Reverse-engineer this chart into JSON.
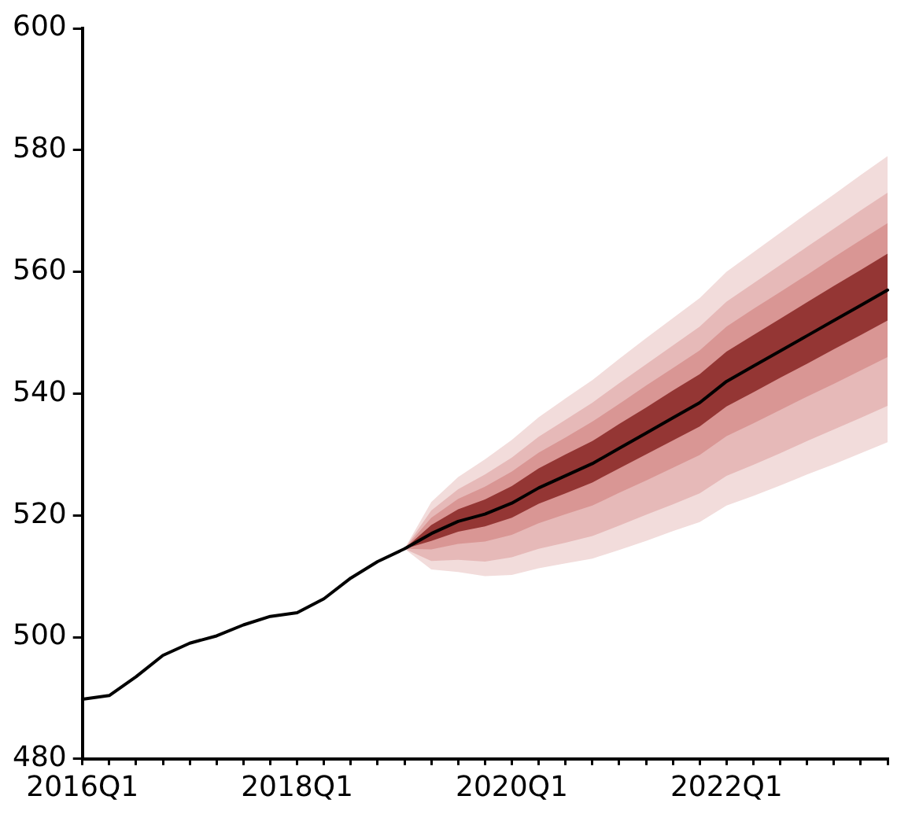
{
  "chart_data": {
    "type": "line",
    "categories": [
      "2016Q1",
      null,
      null,
      null,
      null,
      null,
      null,
      null,
      "2018Q1",
      null,
      null,
      null,
      null,
      null,
      null,
      null,
      "2020Q1",
      null,
      null,
      null,
      null,
      null,
      null,
      null,
      "2022Q1",
      null,
      null,
      null,
      null,
      null,
      null
    ],
    "series": [
      {
        "color": "#f2dcdb",
        "values": [
          null,
          null,
          null,
          null,
          null,
          null,
          null,
          null,
          null,
          null,
          null,
          null,
          null,
          null,
          null,
          null,
          null,
          null,
          null,
          null,
          null,
          null,
          null,
          null,
          null,
          null,
          null,
          null,
          null,
          null,
          null
        ],
        "lower": [
          null,
          null,
          null,
          null,
          null,
          null,
          null,
          null,
          null,
          null,
          null,
          null,
          514.5,
          511.1,
          510.7,
          510.0,
          510.2,
          511.3,
          512.1,
          512.9,
          514.3,
          515.8,
          517.4,
          518.9,
          521.6,
          523.2,
          524.9,
          526.7,
          528.4,
          530.2,
          532
        ],
        "upper": [
          null,
          null,
          null,
          null,
          null,
          null,
          null,
          null,
          null,
          null,
          null,
          null,
          514.5,
          522.2,
          526.3,
          529.2,
          532.4,
          536.1,
          539.2,
          542.2,
          545.7,
          549.1,
          552.4,
          555.7,
          560.0,
          563.2,
          566.4,
          569.6,
          572.7,
          575.9,
          579
        ]
      },
      {
        "color": "#e6b9b8",
        "values": [
          null,
          null,
          null,
          null,
          null,
          null,
          null,
          null,
          null,
          null,
          null,
          null,
          null,
          null,
          null,
          null,
          null,
          null,
          null,
          null,
          null,
          null,
          null,
          null,
          null,
          null,
          null,
          null,
          null,
          null,
          null
        ],
        "lower": [
          null,
          null,
          null,
          null,
          null,
          null,
          null,
          null,
          null,
          null,
          null,
          null,
          514.5,
          512.5,
          512.7,
          512.4,
          513.1,
          514.5,
          515.5,
          516.6,
          518.3,
          520.1,
          521.8,
          523.6,
          526.5,
          528.3,
          530.2,
          532.2,
          534.1,
          536.0,
          538
        ],
        "upper": [
          null,
          null,
          null,
          null,
          null,
          null,
          null,
          null,
          null,
          null,
          null,
          null,
          514.5,
          520.8,
          524.3,
          526.7,
          529.5,
          532.9,
          535.7,
          538.5,
          541.7,
          544.8,
          547.9,
          551.0,
          555.1,
          558.1,
          561.1,
          564.1,
          567.1,
          570.1,
          573
        ]
      },
      {
        "color": "#d99694",
        "values": [
          null,
          null,
          null,
          null,
          null,
          null,
          null,
          null,
          null,
          null,
          null,
          null,
          null,
          null,
          null,
          null,
          null,
          null,
          null,
          null,
          null,
          null,
          null,
          null,
          null,
          null,
          null,
          null,
          null,
          null,
          null
        ],
        "lower": [
          null,
          null,
          null,
          null,
          null,
          null,
          null,
          null,
          null,
          null,
          null,
          null,
          514.5,
          514.4,
          515.3,
          515.7,
          516.8,
          518.7,
          520.2,
          521.6,
          523.7,
          525.7,
          527.8,
          529.9,
          533.0,
          535.1,
          537.3,
          539.5,
          541.6,
          543.8,
          546
        ],
        "upper": [
          null,
          null,
          null,
          null,
          null,
          null,
          null,
          null,
          null,
          null,
          null,
          null,
          514.5,
          519.6,
          522.7,
          524.7,
          527.2,
          530.3,
          532.8,
          535.4,
          538.3,
          541.3,
          544.2,
          547.1,
          551.0,
          553.9,
          556.7,
          559.5,
          562.4,
          565.2,
          568
        ]
      },
      {
        "color": "#943634",
        "values": [
          null,
          null,
          null,
          null,
          null,
          null,
          null,
          null,
          null,
          null,
          null,
          null,
          null,
          null,
          null,
          null,
          null,
          null,
          null,
          null,
          null,
          null,
          null,
          null,
          null,
          null,
          null,
          null,
          null,
          null,
          null
        ],
        "lower": [
          null,
          null,
          null,
          null,
          null,
          null,
          null,
          null,
          null,
          null,
          null,
          null,
          514.5,
          515.8,
          517.3,
          518.2,
          519.6,
          521.9,
          523.6,
          525.4,
          527.7,
          530.0,
          532.3,
          534.6,
          537.9,
          540.2,
          542.6,
          544.9,
          547.3,
          549.6,
          552
        ],
        "upper": [
          null,
          null,
          null,
          null,
          null,
          null,
          null,
          null,
          null,
          null,
          null,
          null,
          514.5,
          518.4,
          521.0,
          522.6,
          524.8,
          527.7,
          530.0,
          532.2,
          535.0,
          537.7,
          540.5,
          543.2,
          546.9,
          549.6,
          552.3,
          555.0,
          557.7,
          560.3,
          563
        ]
      },
      {
        "color": "#000000",
        "values": [
          489.8,
          490.4,
          493.5,
          497,
          499,
          500.2,
          502,
          503.4,
          504,
          506.3,
          509.7,
          512.4,
          514.5,
          517,
          519,
          520.2,
          522,
          524.5,
          526.5,
          528.5,
          531,
          533.5,
          536,
          538.5,
          542,
          544.5,
          547,
          549.5,
          552,
          554.5,
          557
        ]
      }
    ],
    "ylim": [
      480,
      600
    ],
    "yticks": [
      480,
      500,
      520,
      540,
      560,
      580,
      600
    ],
    "grid": false,
    "legend": false,
    "marker": "none",
    "line_style": "solid"
  }
}
